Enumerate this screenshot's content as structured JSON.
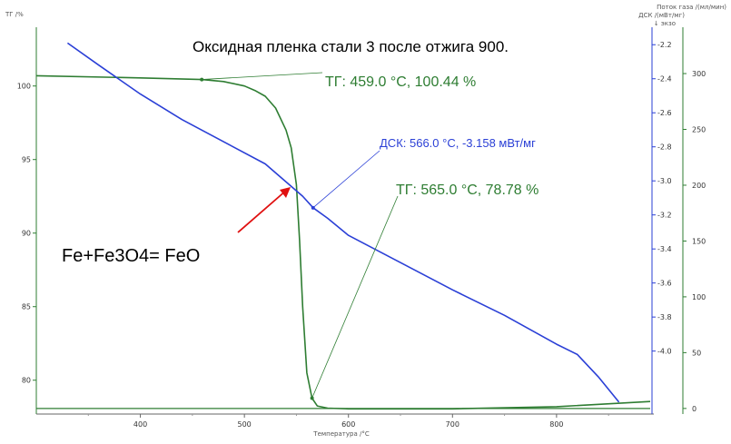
{
  "chart_data": {
    "type": "line",
    "title": "Оксидная пленка стали 3 после отжига 900.",
    "xlabel": "Температура /°C",
    "xlim": [
      300,
      890
    ],
    "x_ticks": [
      400,
      500,
      600,
      700,
      800
    ],
    "y_left": {
      "label": "ТГ /%",
      "lim": [
        77.7,
        103.5
      ],
      "ticks": [
        80,
        85,
        90,
        95,
        100
      ]
    },
    "y_mid": {
      "label_lines": [
        "Поток газа /(мл/мин)",
        "ДСК /(мВт/мг)",
        "↓ экзо"
      ],
      "lim": [
        -4.37,
        -2.14
      ],
      "ticks": [
        -2.2,
        -2.4,
        -2.6,
        -2.8,
        -3.0,
        -3.2,
        -3.4,
        -3.6,
        -3.8,
        -4.0
      ]
    },
    "y_right": {
      "lim": [
        -5,
        335
      ],
      "ticks": [
        0,
        50,
        100,
        150,
        200,
        250,
        300
      ]
    },
    "series": [
      {
        "axis": "left",
        "color": "#2e7d32",
        "x": [
          300,
          400,
          459,
          480,
          500,
          510,
          520,
          530,
          540,
          545,
          550,
          553,
          556,
          560,
          565,
          570,
          580,
          600,
          700,
          800,
          890
        ],
        "y": [
          100.7,
          100.55,
          100.44,
          100.3,
          100.0,
          99.7,
          99.3,
          98.5,
          97.0,
          95.8,
          93.3,
          89.5,
          85.0,
          80.5,
          78.78,
          78.25,
          78.1,
          78.05,
          78.05,
          78.2,
          78.55
        ]
      },
      {
        "axis": "mid",
        "color": "#2a3fd6",
        "x": [
          330,
          360,
          400,
          440,
          480,
          520,
          556,
          566,
          580,
          600,
          650,
          700,
          750,
          800,
          820,
          840,
          860
        ],
        "y": [
          -2.19,
          -2.32,
          -2.49,
          -2.64,
          -2.77,
          -2.9,
          -3.09,
          -3.158,
          -3.22,
          -3.32,
          -3.48,
          -3.64,
          -3.79,
          -3.96,
          -4.02,
          -4.15,
          -4.3
        ]
      },
      {
        "axis": "right",
        "color": "#2e7d32",
        "x": [
          300,
          890
        ],
        "y": [
          0,
          0
        ]
      }
    ],
    "annotations": [
      {
        "text": "ТГ: 459.0 °C, 100.44 %",
        "color": "#2e7d32",
        "x": 459,
        "y": 100.44,
        "axis": "left"
      },
      {
        "text": "ДСК: 566.0 °C, -3.158 мВт/мг",
        "color": "#2a3fd6",
        "x": 566,
        "y": -3.158,
        "axis": "mid"
      },
      {
        "text": "ТГ: 565.0 °C, 78.78 %",
        "color": "#2e7d32",
        "x": 565,
        "y": 78.78,
        "axis": "left"
      },
      {
        "text": "Fe+Fe3O4= FeO",
        "color": "#000000",
        "arrow_color": "#e01010"
      }
    ],
    "grid": false
  }
}
